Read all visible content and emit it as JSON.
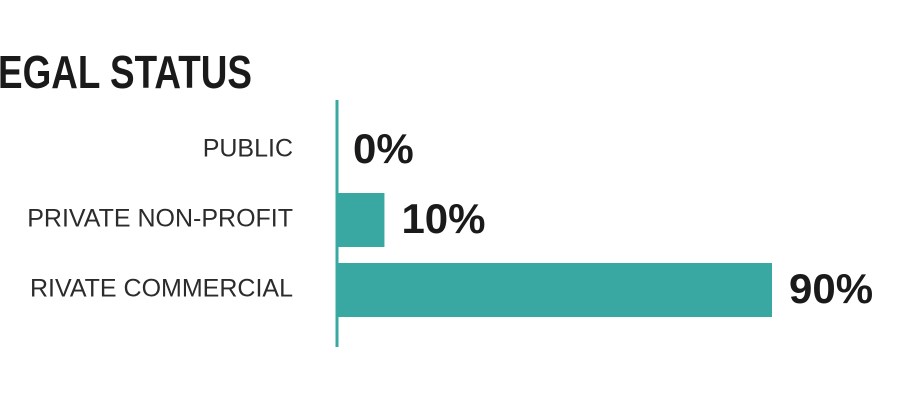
{
  "chart_data": {
    "type": "hbar",
    "title": "EGAL STATUS",
    "categories": [
      "PUBLIC",
      "PRIVATE NON-PROFIT",
      "RIVATE COMMERCIAL"
    ],
    "values": [
      0,
      10,
      90
    ],
    "value_labels": [
      "0%",
      "10%",
      "90%"
    ],
    "color": "#3aa8a2"
  }
}
